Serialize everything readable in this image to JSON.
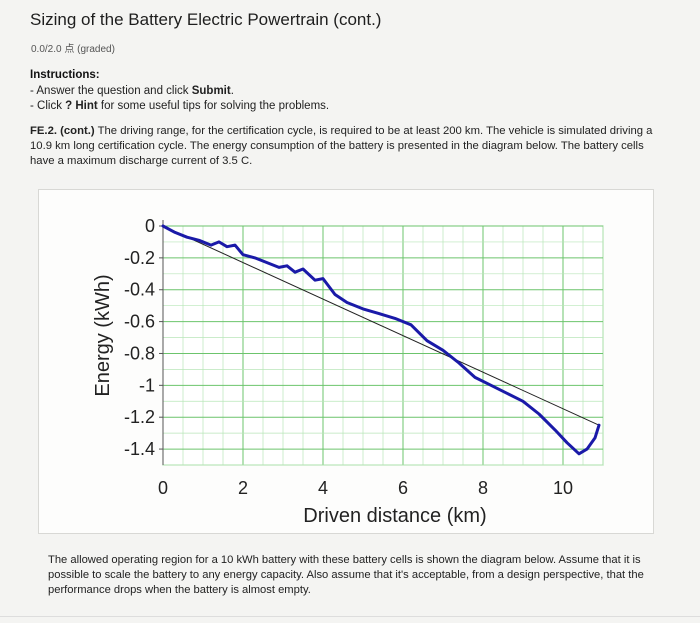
{
  "header": {
    "title": "Sizing of the Battery Electric Powertrain (cont.)",
    "score": "0.0/2.0 点 (graded)"
  },
  "instructions": {
    "heading": "Instructions:",
    "line1_prefix": "- Answer the question and click ",
    "line1_bold": "Submit",
    "line1_suffix": ".",
    "line2_prefix": "- Click ",
    "line2_bold": "? Hint",
    "line2_suffix": " for some useful tips for solving the problems."
  },
  "question": {
    "id": "FE.2. (cont.)",
    "text": " The driving range, for the certification cycle, is required to be at least 200 km. The vehicle is simulated driving a 10.9 km long certification cycle. The energy consumption of the battery is presented in the diagram below. The battery cells have a maximum discharge current of 3.5 C."
  },
  "chart_data": {
    "type": "line",
    "xlabel": "Driven distance (km)",
    "ylabel": "Energy (kWh)",
    "xlim": [
      0,
      11
    ],
    "ylim": [
      -1.5,
      0
    ],
    "x_ticks": [
      "0",
      "2",
      "4",
      "6",
      "8",
      "10"
    ],
    "y_ticks": [
      "0",
      "-0.2",
      "-0.4",
      "-0.6",
      "-0.8",
      "-1",
      "-1.2",
      "-1.4"
    ],
    "grid": true,
    "series": [
      {
        "color": "#1a1aa8",
        "x": [
          0,
          0.3,
          0.6,
          0.9,
          1.2,
          1.4,
          1.6,
          1.8,
          2.0,
          2.3,
          2.6,
          2.9,
          3.1,
          3.3,
          3.5,
          3.8,
          4.0,
          4.3,
          4.6,
          5.0,
          5.4,
          5.8,
          6.2,
          6.6,
          7.0,
          7.4,
          7.8,
          8.2,
          8.6,
          9.0,
          9.4,
          9.8,
          10.1,
          10.4,
          10.6,
          10.8,
          10.9
        ],
        "y": [
          0,
          -0.04,
          -0.07,
          -0.09,
          -0.12,
          -0.1,
          -0.13,
          -0.12,
          -0.18,
          -0.2,
          -0.23,
          -0.26,
          -0.25,
          -0.29,
          -0.27,
          -0.34,
          -0.33,
          -0.43,
          -0.48,
          -0.52,
          -0.55,
          -0.58,
          -0.62,
          -0.72,
          -0.78,
          -0.86,
          -0.95,
          -1.0,
          -1.05,
          -1.1,
          -1.18,
          -1.28,
          -1.36,
          -1.43,
          -1.4,
          -1.33,
          -1.25
        ]
      },
      {
        "color": "#222222",
        "x": [
          0,
          10.9
        ],
        "y": [
          0,
          -1.25
        ]
      }
    ]
  },
  "footer": {
    "text": "The allowed operating region for a 10 kWh battery with these battery cells is shown the diagram below. Assume that it is possible to scale the battery to any energy capacity. Also assume that it's acceptable, from a design perspective, that the performance drops when the battery is almost empty."
  }
}
